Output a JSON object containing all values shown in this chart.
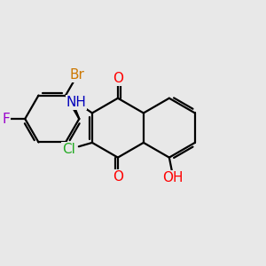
{
  "bg_color": "#e8e8e8",
  "bond_color": "#000000",
  "bond_width": 1.6,
  "atom_labels": {
    "O1": {
      "text": "O",
      "color": "#ff0000",
      "fontsize": 11
    },
    "O2": {
      "text": "O",
      "color": "#ff0000",
      "fontsize": 11
    },
    "OH": {
      "text": "OH",
      "color": "#ff0000",
      "fontsize": 11
    },
    "NH": {
      "text": "NH",
      "color": "#0000bb",
      "fontsize": 11
    },
    "Cl": {
      "text": "Cl",
      "color": "#22aa22",
      "fontsize": 11
    },
    "Br": {
      "text": "Br",
      "color": "#cc7700",
      "fontsize": 11
    },
    "F": {
      "text": "F",
      "color": "#9900cc",
      "fontsize": 11
    }
  }
}
